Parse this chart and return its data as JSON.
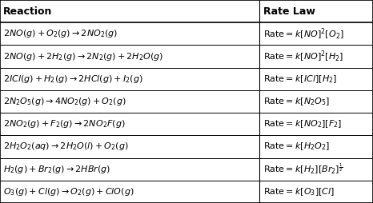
{
  "headers": [
    "Reaction",
    "Rate Law"
  ],
  "reactions": [
    "$2NO(g) + O_2(g) \\rightarrow 2NO_2(g)$",
    "$2NO(g) + 2H_2(g) \\rightarrow 2N_2(g) + 2H_2O(g)$",
    "$2ICl(g) + H_2(g) \\rightarrow 2HCl(g) + I_2(g)$",
    "$2N_2O_5(g) \\rightarrow 4NO_2(g) + O_2(g)$",
    "$2NO_2(g) + F_2(g) \\rightarrow 2NO_2F(g)$",
    "$2H_2O_2(aq) \\rightarrow 2H_2O(l) + O_2(g)$",
    "$H_2(g) + Br_2(g) \\rightarrow 2HBr(g)$",
    "$O_3(g) + Cl(g) \\rightarrow O_2(g) + ClO(g)$"
  ],
  "rate_laws": [
    "$\\mathrm{Rate} = k[NO]^2[O_2]$",
    "$\\mathrm{Rate} = k[NO]^2[H_2]$",
    "$\\mathrm{Rate} = k[ICl][H_2]$",
    "$\\mathrm{Rate} = k[N_2O_5]$",
    "$\\mathrm{Rate} = k[NO_2][F_2]$",
    "$\\mathrm{Rate} = k[H_2O_2]$",
    "$\\mathrm{Rate} = k[H_2][Br_2]^{\\frac{1}{2}}$",
    "$\\mathrm{Rate} = k[O_3][Cl]$"
  ],
  "col_split": 0.695,
  "border_color": "#000000",
  "header_fontsize": 9,
  "cell_fontsize": 8,
  "fig_width": 4.66,
  "fig_height": 2.54,
  "dpi": 100
}
